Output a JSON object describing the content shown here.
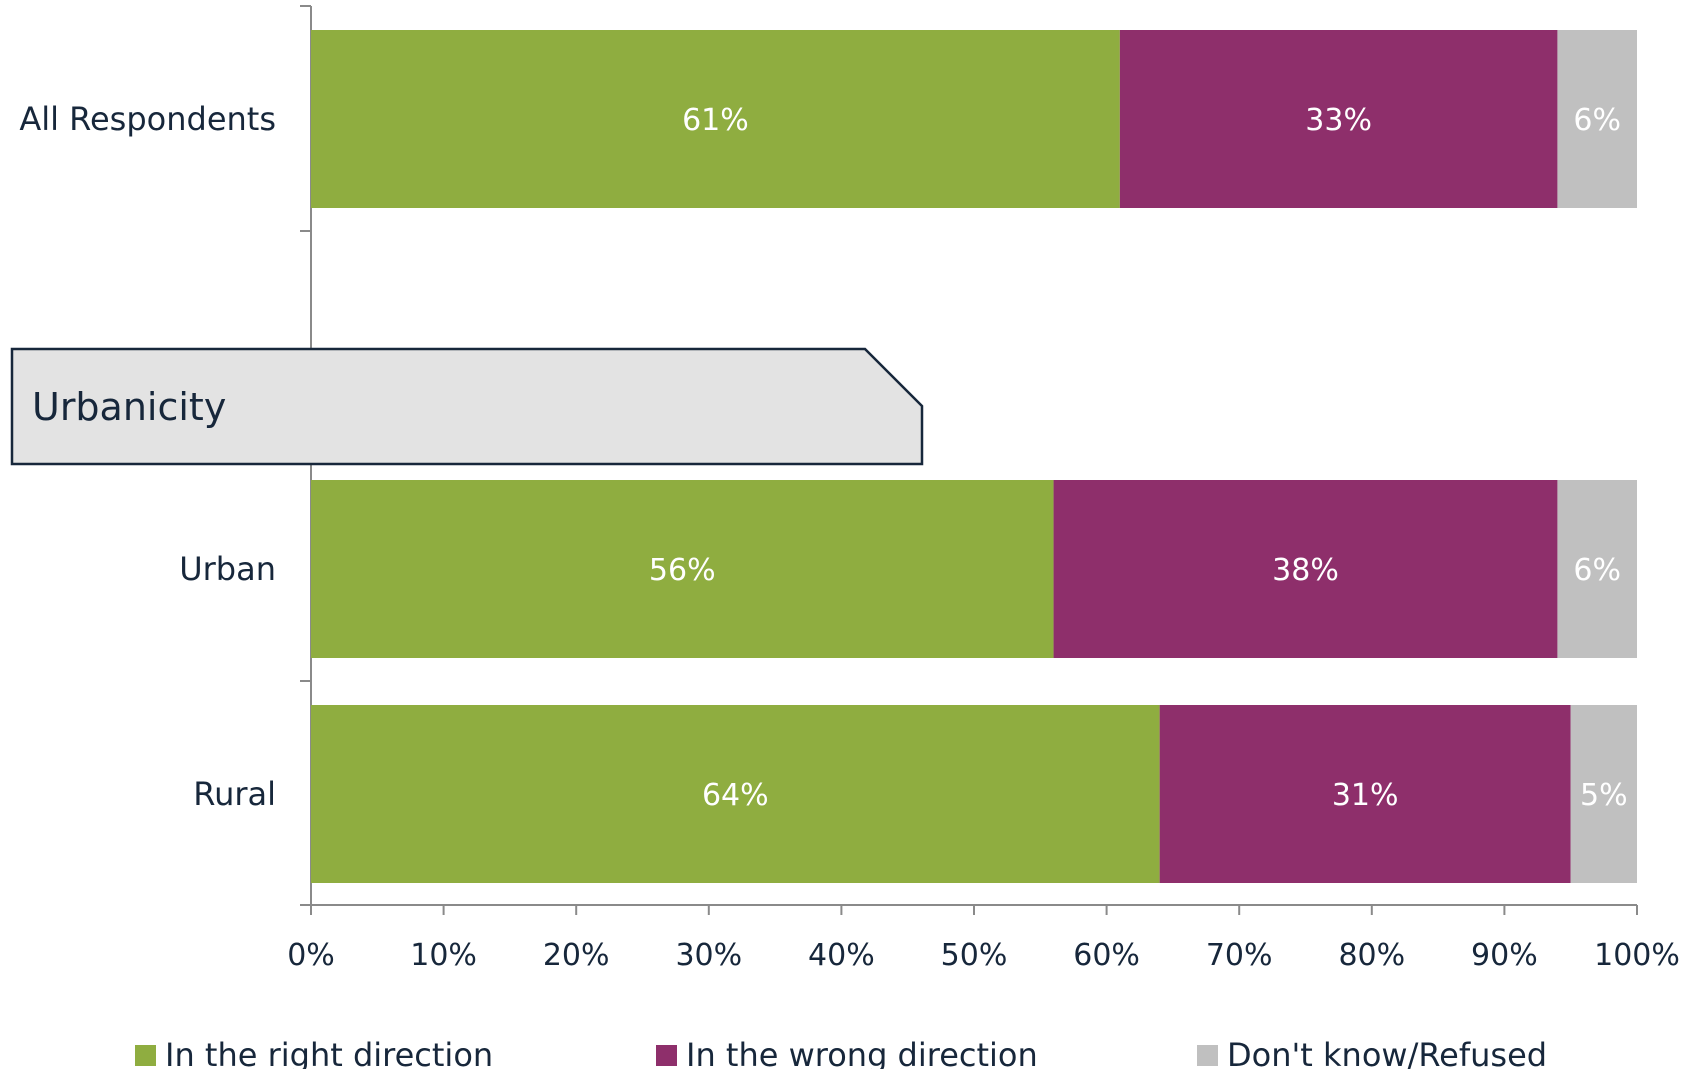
{
  "chart_data": {
    "type": "bar",
    "orientation": "horizontal",
    "stacked": true,
    "categories": [
      "All Respondents",
      "Urban",
      "Rural"
    ],
    "group_header": "Urbanicity",
    "series": [
      {
        "name": "In the right direction",
        "color": "#8fad40",
        "values": [
          61,
          56,
          64
        ],
        "labels": [
          "61%",
          "56%",
          "64%"
        ]
      },
      {
        "name": "In the wrong direction",
        "color": "#8e2f6b",
        "values": [
          33,
          38,
          31
        ],
        "labels": [
          "33%",
          "38%",
          "31%"
        ]
      },
      {
        "name": "Don't know/Refused",
        "color": "#c0c0c0",
        "values": [
          6,
          6,
          5
        ],
        "labels": [
          "6%",
          "6%",
          "5%"
        ]
      }
    ],
    "xlim": [
      0,
      100
    ],
    "xticks": [
      "0%",
      "10%",
      "20%",
      "30%",
      "40%",
      "50%",
      "60%",
      "70%",
      "80%",
      "90%",
      "100%"
    ],
    "grid": false,
    "legend_position": "bottom"
  }
}
